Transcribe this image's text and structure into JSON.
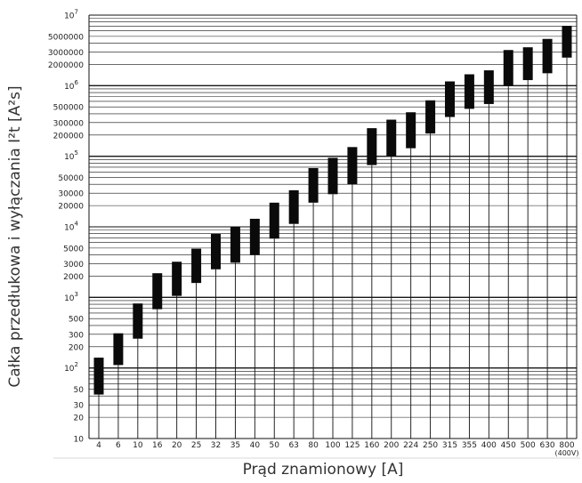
{
  "chart_data": {
    "type": "range-bar",
    "xlabel": "Prąd znamionowy [A]",
    "ylabel": "Całka przedłukowa i wyłączania I²t [A²s]",
    "yscale": "log",
    "ylim": [
      10,
      10000000
    ],
    "grid": true,
    "ytick_labels": [
      {
        "value": 10,
        "label": "10"
      },
      {
        "value": 20,
        "label": "20"
      },
      {
        "value": 30,
        "label": "30"
      },
      {
        "value": 50,
        "label": "50"
      },
      {
        "value": 100,
        "label": "10",
        "exp": "2"
      },
      {
        "value": 200,
        "label": "200"
      },
      {
        "value": 300,
        "label": "300"
      },
      {
        "value": 500,
        "label": "500"
      },
      {
        "value": 1000,
        "label": "10",
        "exp": "3"
      },
      {
        "value": 2000,
        "label": "2000"
      },
      {
        "value": 3000,
        "label": "3000"
      },
      {
        "value": 5000,
        "label": "5000"
      },
      {
        "value": 10000,
        "label": "10",
        "exp": "4"
      },
      {
        "value": 20000,
        "label": "20000"
      },
      {
        "value": 30000,
        "label": "30000"
      },
      {
        "value": 50000,
        "label": "50000"
      },
      {
        "value": 100000,
        "label": "10",
        "exp": "5"
      },
      {
        "value": 200000,
        "label": "200000"
      },
      {
        "value": 300000,
        "label": "300000"
      },
      {
        "value": 500000,
        "label": "500000"
      },
      {
        "value": 1000000,
        "label": "10",
        "exp": "6"
      },
      {
        "value": 2000000,
        "label": "2000000"
      },
      {
        "value": 3000000,
        "label": "3000000"
      },
      {
        "value": 5000000,
        "label": "5000000"
      },
      {
        "value": 10000000,
        "label": "10",
        "exp": "7"
      }
    ],
    "categories": [
      "4",
      "6",
      "10",
      "16",
      "20",
      "25",
      "32",
      "35",
      "40",
      "50",
      "63",
      "80",
      "100",
      "125",
      "160",
      "200",
      "224",
      "250",
      "315",
      "355",
      "400",
      "450",
      "500",
      "630",
      "800"
    ],
    "x_note": "(400V)",
    "ranges": [
      {
        "rating": "4",
        "low": 42,
        "high": 140
      },
      {
        "rating": "6",
        "low": 110,
        "high": 310
      },
      {
        "rating": "10",
        "low": 260,
        "high": 820
      },
      {
        "rating": "16",
        "low": 680,
        "high": 2200
      },
      {
        "rating": "20",
        "low": 1050,
        "high": 3200
      },
      {
        "rating": "25",
        "low": 1600,
        "high": 4900
      },
      {
        "rating": "32",
        "low": 2500,
        "high": 8000
      },
      {
        "rating": "35",
        "low": 3100,
        "high": 10000
      },
      {
        "rating": "40",
        "low": 4000,
        "high": 13000
      },
      {
        "rating": "50",
        "low": 6800,
        "high": 22000
      },
      {
        "rating": "63",
        "low": 11000,
        "high": 33000
      },
      {
        "rating": "80",
        "low": 22000,
        "high": 68000
      },
      {
        "rating": "100",
        "low": 29000,
        "high": 95000
      },
      {
        "rating": "125",
        "low": 40000,
        "high": 135000
      },
      {
        "rating": "160",
        "low": 75000,
        "high": 250000
      },
      {
        "rating": "200",
        "low": 100000,
        "high": 330000
      },
      {
        "rating": "224",
        "low": 130000,
        "high": 420000
      },
      {
        "rating": "250",
        "low": 210000,
        "high": 620000
      },
      {
        "rating": "315",
        "low": 360000,
        "high": 1150000
      },
      {
        "rating": "355",
        "low": 470000,
        "high": 1450000
      },
      {
        "rating": "400",
        "low": 550000,
        "high": 1650000
      },
      {
        "rating": "450",
        "low": 1000000,
        "high": 3200000
      },
      {
        "rating": "500",
        "low": 1200000,
        "high": 3500000
      },
      {
        "rating": "630",
        "low": 1500000,
        "high": 4600000
      },
      {
        "rating": "800",
        "low": 2500000,
        "high": 7000000
      }
    ],
    "bar_color": "#0a0a0a"
  }
}
